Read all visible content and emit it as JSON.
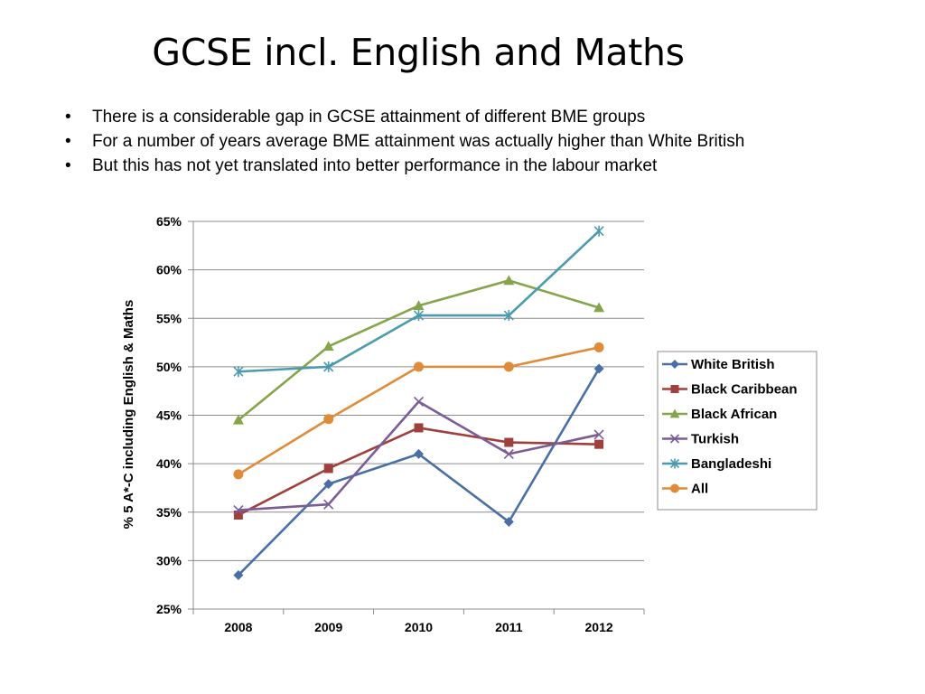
{
  "title": "GCSE incl. English and Maths",
  "bullet_marker": "•",
  "bullets": [
    "There is a considerable gap in GCSE attainment of different BME groups",
    "For a number of years average BME attainment was actually higher than White British",
    "But this has not yet translated into better performance in the labour market"
  ],
  "chart_data": {
    "type": "line",
    "title": "",
    "xlabel": "",
    "ylabel": "% 5 A*-C including English & Maths",
    "categories": [
      "2008",
      "2009",
      "2010",
      "2011",
      "2012"
    ],
    "ylim": [
      0.25,
      0.65
    ],
    "yticks": [
      "25%",
      "30%",
      "35%",
      "40%",
      "45%",
      "50%",
      "55%",
      "60%",
      "65%"
    ],
    "grid": true,
    "legend_position": "right",
    "series": [
      {
        "name": "White British",
        "color": "#4A6FA5",
        "marker": "diamond",
        "values": [
          0.285,
          0.379,
          0.41,
          0.34,
          0.498
        ]
      },
      {
        "name": "Black Caribbean",
        "color": "#A0403C",
        "marker": "square",
        "values": [
          0.347,
          0.395,
          0.437,
          0.422,
          0.42
        ]
      },
      {
        "name": "Black African",
        "color": "#86A44A",
        "marker": "triangle",
        "values": [
          0.445,
          0.521,
          0.563,
          0.589,
          0.561
        ]
      },
      {
        "name": "Turkish",
        "color": "#7B5C97",
        "marker": "x",
        "values": [
          0.352,
          0.358,
          0.464,
          0.41,
          0.43
        ]
      },
      {
        "name": "Bangladeshi",
        "color": "#4A9BAE",
        "marker": "star",
        "values": [
          0.495,
          0.5,
          0.553,
          0.553,
          0.64
        ]
      },
      {
        "name": "All",
        "color": "#E08B3A",
        "marker": "circle",
        "values": [
          0.389,
          0.446,
          0.5,
          0.5,
          0.52
        ]
      }
    ]
  }
}
